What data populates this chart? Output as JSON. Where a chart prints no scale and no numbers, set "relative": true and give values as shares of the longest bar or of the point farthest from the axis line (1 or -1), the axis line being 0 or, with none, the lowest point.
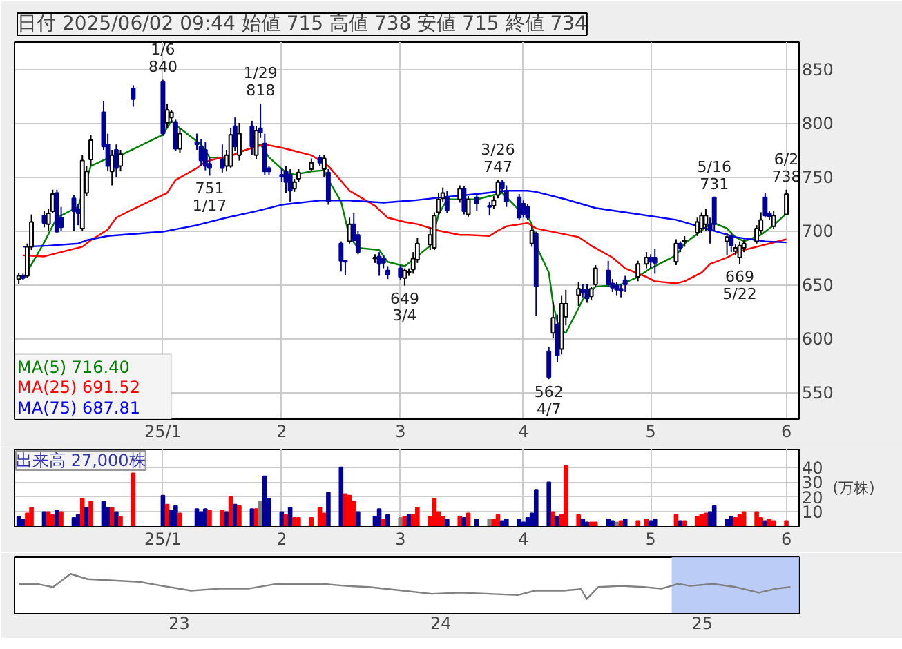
{
  "chart_data": [
    {
      "type": "candlestick",
      "title": "日付 2025/06/02 09:44 始値 715 高値 738 安値 715 終値 734",
      "x": [
        "2024-12-03",
        "2024-12-04",
        "2024-12-05",
        "2024-12-06",
        "2024-12-09",
        "2024-12-10",
        "2024-12-11",
        "2024-12-12",
        "2024-12-13",
        "2024-12-16",
        "2024-12-17",
        "2024-12-18",
        "2024-12-19",
        "2024-12-20",
        "2024-12-23",
        "2024-12-24",
        "2024-12-25",
        "2024-12-26",
        "2024-12-27",
        "2024-12-30",
        "2025-01-06",
        "2025-01-07",
        "2025-01-08",
        "2025-01-09",
        "2025-01-10",
        "2025-01-14",
        "2025-01-15",
        "2025-01-16",
        "2025-01-17",
        "2025-01-20",
        "2025-01-21",
        "2025-01-22",
        "2025-01-23",
        "2025-01-24",
        "2025-01-27",
        "2025-01-28",
        "2025-01-29",
        "2025-01-30",
        "2025-01-31",
        "2025-02-03",
        "2025-02-04",
        "2025-02-05",
        "2025-02-06",
        "2025-02-07",
        "2025-02-10",
        "2025-02-12",
        "2025-02-13",
        "2025-02-14",
        "2025-02-17",
        "2025-02-18",
        "2025-02-19",
        "2025-02-20",
        "2025-02-21",
        "2025-02-25",
        "2025-02-26",
        "2025-02-27",
        "2025-02-28",
        "2025-03-03",
        "2025-03-04",
        "2025-03-05",
        "2025-03-06",
        "2025-03-07",
        "2025-03-10",
        "2025-03-11",
        "2025-03-12",
        "2025-03-13",
        "2025-03-14",
        "2025-03-17",
        "2025-03-18",
        "2025-03-19",
        "2025-03-21",
        "2025-03-24",
        "2025-03-25",
        "2025-03-26",
        "2025-03-27",
        "2025-03-28",
        "2025-03-31",
        "2025-04-01",
        "2025-04-02",
        "2025-04-03",
        "2025-04-04",
        "2025-04-07",
        "2025-04-08",
        "2025-04-09",
        "2025-04-10",
        "2025-04-11",
        "2025-04-14",
        "2025-04-15",
        "2025-04-16",
        "2025-04-17",
        "2025-04-18",
        "2025-04-21",
        "2025-04-22",
        "2025-04-23",
        "2025-04-24",
        "2025-04-25",
        "2025-04-28",
        "2025-04-30",
        "2025-05-01",
        "2025-05-02",
        "2025-05-07",
        "2025-05-08",
        "2025-05-09",
        "2025-05-12",
        "2025-05-13",
        "2025-05-14",
        "2025-05-15",
        "2025-05-16",
        "2025-05-19",
        "2025-05-20",
        "2025-05-21",
        "2025-05-22",
        "2025-05-23",
        "2025-05-26",
        "2025-05-27",
        "2025-05-28",
        "2025-05-29",
        "2025-05-30",
        "2025-06-02"
      ],
      "ohlc": [
        [
          655,
          661,
          650,
          658
        ],
        [
          658,
          660,
          654,
          656
        ],
        [
          658,
          688,
          656,
          685
        ],
        [
          685,
          715,
          682,
          708
        ],
        [
          714,
          718,
          703,
          707
        ],
        [
          706,
          720,
          700,
          716
        ],
        [
          718,
          738,
          716,
          734
        ],
        [
          735,
          738,
          698,
          699
        ],
        [
          712,
          722,
          700,
          703
        ],
        [
          730,
          733,
          700,
          718
        ],
        [
          720,
          725,
          705,
          716
        ],
        [
          702,
          770,
          700,
          765
        ],
        [
          735,
          760,
          732,
          755
        ],
        [
          766,
          789,
          760,
          784
        ],
        [
          810,
          820,
          775,
          778
        ],
        [
          780,
          790,
          755,
          760
        ],
        [
          755,
          775,
          742,
          770
        ],
        [
          775,
          780,
          750,
          758
        ],
        [
          760,
          775,
          755,
          771
        ],
        [
          832,
          835,
          815,
          822
        ],
        [
          838,
          840,
          788,
          790
        ],
        [
          800,
          818,
          795,
          812
        ],
        [
          805,
          812,
          800,
          810
        ],
        [
          801,
          803,
          774,
          776
        ],
        [
          776,
          795,
          772,
          790
        ],
        [
          782,
          790,
          775,
          780
        ],
        [
          778,
          785,
          760,
          765
        ],
        [
          775,
          782,
          756,
          760
        ],
        [
          762,
          768,
          751,
          758
        ],
        [
          766,
          780,
          754,
          758
        ],
        [
          760,
          775,
          755,
          770
        ],
        [
          760,
          795,
          758,
          789
        ],
        [
          797,
          805,
          774,
          778
        ],
        [
          770,
          800,
          765,
          790
        ],
        [
          797,
          802,
          770,
          778
        ],
        [
          770,
          797,
          766,
          793
        ],
        [
          795,
          818,
          786,
          791
        ],
        [
          781,
          790,
          752,
          755
        ],
        [
          758,
          760,
          752,
          755
        ],
        [
          752,
          758,
          745,
          750
        ],
        [
          755,
          760,
          735,
          745
        ],
        [
          752,
          757,
          727,
          737
        ],
        [
          739,
          748,
          736,
          745
        ],
        [
          748,
          757,
          745,
          754
        ],
        [
          757,
          767,
          755,
          763
        ],
        [
          768,
          770,
          760,
          763
        ],
        [
          757,
          770,
          750,
          767
        ],
        [
          754,
          757,
          724,
          727
        ],
        [
          688,
          690,
          662,
          672
        ],
        [
          672,
          673,
          659,
          671
        ],
        [
          690,
          712,
          688,
          706
        ],
        [
          706,
          716,
          689,
          691
        ],
        [
          696,
          700,
          678,
          680
        ],
        [
          674,
          678,
          670,
          675
        ],
        [
          676,
          680,
          658,
          669
        ],
        [
          674,
          677,
          665,
          670
        ],
        [
          663,
          667,
          655,
          659
        ],
        [
          665,
          668,
          654,
          657
        ],
        [
          656,
          665,
          649,
          663
        ],
        [
          661,
          665,
          658,
          662
        ],
        [
          664,
          680,
          660,
          674
        ],
        [
          673,
          693,
          670,
          688
        ],
        [
          687,
          703,
          682,
          696
        ],
        [
          684,
          717,
          682,
          714
        ],
        [
          717,
          735,
          714,
          729
        ],
        [
          730,
          740,
          727,
          735
        ],
        [
          731,
          737,
          716,
          719
        ],
        [
          729,
          742,
          726,
          739
        ],
        [
          739,
          741,
          715,
          718
        ],
        [
          715,
          732,
          713,
          729
        ],
        [
          731,
          734,
          718,
          725
        ],
        [
          723,
          727,
          714,
          722
        ],
        [
          723,
          732,
          720,
          728
        ],
        [
          733,
          747,
          730,
          745
        ],
        [
          745,
          747,
          735,
          739
        ],
        [
          737,
          742,
          722,
          727
        ],
        [
          731,
          734,
          710,
          712
        ],
        [
          725,
          728,
          712,
          715
        ],
        [
          722,
          725,
          710,
          712
        ],
        [
          688,
          704,
          685,
          700
        ],
        [
          697,
          699,
          621,
          648
        ],
        [
          588,
          592,
          562,
          564
        ],
        [
          605,
          634,
          600,
          619
        ],
        [
          613,
          622,
          578,
          584
        ],
        [
          590,
          640,
          585,
          632
        ],
        [
          620,
          645,
          612,
          632
        ],
        [
          640,
          652,
          630,
          646
        ],
        [
          645,
          650,
          638,
          643
        ],
        [
          645,
          650,
          633,
          637
        ],
        [
          639,
          648,
          636,
          646
        ],
        [
          650,
          668,
          648,
          665
        ],
        [
          663,
          672,
          648,
          650
        ],
        [
          651,
          655,
          643,
          647
        ],
        [
          649,
          652,
          640,
          645
        ],
        [
          646,
          650,
          638,
          644
        ],
        [
          654,
          658,
          643,
          650
        ],
        [
          657,
          672,
          653,
          669
        ],
        [
          669,
          680,
          665,
          675
        ],
        [
          675,
          678,
          665,
          671
        ],
        [
          675,
          683,
          660,
          670
        ],
        [
          671,
          692,
          668,
          688
        ],
        [
          688,
          690,
          680,
          684
        ],
        [
          690,
          695,
          685,
          691
        ],
        [
          698,
          712,
          695,
          708
        ],
        [
          702,
          717,
          698,
          714
        ],
        [
          706,
          720,
          700,
          714
        ],
        [
          706,
          712,
          688,
          700
        ],
        [
          731,
          731,
          700,
          706
        ],
        [
          690,
          698,
          677,
          694
        ],
        [
          695,
          698,
          680,
          686
        ],
        [
          681,
          687,
          677,
          684
        ],
        [
          675,
          690,
          669,
          686
        ],
        [
          684,
          692,
          680,
          688
        ],
        [
          690,
          705,
          688,
          702
        ],
        [
          700,
          717,
          697,
          710
        ],
        [
          731,
          735,
          712,
          714
        ],
        [
          716,
          718,
          710,
          713
        ],
        [
          704,
          718,
          702,
          714
        ],
        [
          715,
          738,
          715,
          734
        ]
      ],
      "colors": [
        "#ffffff",
        "#000099",
        "#ffffff",
        "#ffffff",
        "#000099",
        "#ffffff",
        "#ffffff",
        "#000099",
        "#000099",
        "#000099",
        "#000099",
        "#ffffff",
        "#ffffff",
        "#ffffff",
        "#000099",
        "#000099",
        "#ffffff",
        "#000099",
        "#ffffff",
        "#000099",
        "#000099",
        "#ffffff",
        "#ffffff",
        "#000099",
        "#ffffff",
        "#000099",
        "#000099",
        "#000099",
        "#000099",
        "#000099",
        "#ffffff",
        "#ffffff",
        "#000099",
        "#ffffff",
        "#000099",
        "#ffffff",
        "#000099",
        "#000099",
        "#000099",
        "#000099",
        "#000099",
        "#000099",
        "#ffffff",
        "#ffffff",
        "#ffffff",
        "#000099",
        "#ffffff",
        "#000099",
        "#000099",
        "#000099",
        "#ffffff",
        "#000099",
        "#000099",
        "#ffffff",
        "#000099",
        "#000099",
        "#000099",
        "#000099",
        "#ffffff",
        "#ffffff",
        "#ffffff",
        "#ffffff",
        "#ffffff",
        "#ffffff",
        "#ffffff",
        "#ffffff",
        "#000099",
        "#ffffff",
        "#000099",
        "#ffffff",
        "#000099",
        "#000099",
        "#ffffff",
        "#ffffff",
        "#000099",
        "#000099",
        "#000099",
        "#000099",
        "#000099",
        "#ffffff",
        "#000099",
        "#000099",
        "#ffffff",
        "#000099",
        "#ffffff",
        "#ffffff",
        "#ffffff",
        "#000099",
        "#000099",
        "#ffffff",
        "#ffffff",
        "#000099",
        "#000099",
        "#000099",
        "#000099",
        "#000099",
        "#ffffff",
        "#ffffff",
        "#000099",
        "#000099",
        "#ffffff",
        "#000099",
        "#ffffff",
        "#ffffff",
        "#ffffff",
        "#ffffff",
        "#000099",
        "#000099",
        "#ffffff",
        "#000099",
        "#ffffff",
        "#ffffff",
        "#ffffff",
        "#ffffff",
        "#ffffff",
        "#000099",
        "#000099",
        "#ffffff",
        "#ffffff"
      ],
      "series": [
        {
          "type": "line",
          "name": "MA(5) 716.40",
          "color": "#008000",
          "x": [
            "2024-12-04",
            "2024-12-09",
            "2024-12-12",
            "2024-12-17",
            "2024-12-20",
            "2024-12-25",
            "2024-12-27",
            "2025-01-06",
            "2025-01-08",
            "2025-01-10",
            "2025-01-15",
            "2025-01-17",
            "2025-01-21",
            "2025-01-23",
            "2025-01-27",
            "2025-01-29",
            "2025-01-31",
            "2025-02-04",
            "2025-02-06",
            "2025-02-10",
            "2025-02-13",
            "2025-02-14",
            "2025-02-17",
            "2025-02-19",
            "2025-02-21",
            "2025-02-26",
            "2025-02-28",
            "2025-03-04",
            "2025-03-06",
            "2025-03-10",
            "2025-03-12",
            "2025-03-14",
            "2025-03-18",
            "2025-03-21",
            "2025-03-25",
            "2025-03-27",
            "2025-03-31",
            "2025-04-01",
            "2025-04-03",
            "2025-04-04",
            "2025-04-07",
            "2025-04-08",
            "2025-04-09",
            "2025-04-10",
            "2025-04-11",
            "2025-04-14",
            "2025-04-15",
            "2025-04-16",
            "2025-04-17",
            "2025-04-18",
            "2025-04-22",
            "2025-04-24",
            "2025-04-28",
            "2025-05-01",
            "2025-05-07",
            "2025-05-09",
            "2025-05-13",
            "2025-05-15",
            "2025-05-16",
            "2025-05-19",
            "2025-05-21",
            "2025-05-23",
            "2025-05-27",
            "2025-05-29",
            "2025-05-30",
            "2025-06-02"
          ],
          "values": [
            655,
            689,
            712,
            722,
            760,
            769,
            770,
            789,
            802,
            795,
            780,
            768,
            767,
            771,
            777,
            780,
            768,
            754,
            752,
            755,
            756,
            747,
            727,
            694,
            684,
            682,
            671,
            667,
            673,
            686,
            715,
            729,
            729,
            729,
            733,
            735,
            719,
            720,
            706,
            686,
            661,
            632,
            615,
            607,
            605,
            628,
            636,
            640,
            644,
            648,
            649,
            650,
            657,
            665,
            677,
            688,
            700,
            706,
            707,
            702,
            694,
            690,
            696,
            702,
            705,
            716
          ]
        },
        {
          "type": "line",
          "name": "MA(25) 691.52",
          "color": "#ff0000",
          "x": [
            "2024-12-04",
            "2024-12-09",
            "2024-12-13",
            "2024-12-18",
            "2024-12-20",
            "2024-12-24",
            "2024-12-26",
            "2024-12-30",
            "2025-01-07",
            "2025-01-09",
            "2025-01-14",
            "2025-01-16",
            "2025-01-20",
            "2025-01-22",
            "2025-01-24",
            "2025-01-28",
            "2025-01-30",
            "2025-02-03",
            "2025-02-05",
            "2025-02-10",
            "2025-02-14",
            "2025-02-19",
            "2025-02-25",
            "2025-02-28",
            "2025-03-04",
            "2025-03-07",
            "2025-03-12",
            "2025-03-17",
            "2025-03-19",
            "2025-03-24",
            "2025-03-26",
            "2025-03-28",
            "2025-04-02",
            "2025-04-04",
            "2025-04-09",
            "2025-04-14",
            "2025-04-17",
            "2025-04-22",
            "2025-04-25",
            "2025-04-30",
            "2025-05-02",
            "2025-05-07",
            "2025-05-09",
            "2025-05-13",
            "2025-05-15",
            "2025-05-19",
            "2025-05-21",
            "2025-05-23",
            "2025-05-27",
            "2025-05-29",
            "2025-06-02"
          ],
          "values": [
            677,
            676,
            680,
            685,
            691,
            701,
            712,
            720,
            735,
            747,
            758,
            764,
            768,
            769,
            773,
            778,
            780,
            777,
            775,
            770,
            760,
            737,
            723,
            712,
            708,
            706,
            700,
            696,
            696,
            695,
            700,
            704,
            707,
            702,
            698,
            694,
            686,
            675,
            665,
            657,
            653,
            651,
            653,
            661,
            669,
            675,
            679,
            682,
            686,
            688,
            692
          ]
        },
        {
          "type": "line",
          "name": "MA(75) 687.81",
          "color": "#0000ff",
          "x": [
            "2024-12-04",
            "2024-12-10",
            "2024-12-17",
            "2024-12-19",
            "2024-12-24",
            "2025-01-06",
            "2025-01-14",
            "2025-01-21",
            "2025-01-28",
            "2025-02-03",
            "2025-02-12",
            "2025-02-19",
            "2025-02-27",
            "2025-03-06",
            "2025-03-13",
            "2025-03-21",
            "2025-03-28",
            "2025-04-02",
            "2025-04-04",
            "2025-04-11",
            "2025-04-18",
            "2025-04-25",
            "2025-05-07",
            "2025-05-14",
            "2025-05-21",
            "2025-05-28",
            "2025-06-02"
          ],
          "values": [
            685,
            686,
            688,
            691,
            695,
            699,
            705,
            712,
            718,
            724,
            728,
            728,
            726,
            728,
            731,
            734,
            737,
            737,
            736,
            729,
            721,
            717,
            710,
            702,
            694,
            690,
            689
          ]
        }
      ],
      "annotations": [
        {
          "text": "1/6\n840",
          "x": "2025-01-06",
          "y": 840
        },
        {
          "text": "751\n1/17",
          "x": "2025-01-17",
          "y": 751
        },
        {
          "text": "1/29\n818",
          "x": "2025-01-29",
          "y": 818
        },
        {
          "text": "649\n3/4",
          "x": "2025-03-04",
          "y": 649
        },
        {
          "text": "3/26\n747",
          "x": "2025-03-26",
          "y": 747
        },
        {
          "text": "562\n4/7",
          "x": "2025-04-07",
          "y": 562
        },
        {
          "text": "5/16\n731",
          "x": "2025-05-16",
          "y": 731
        },
        {
          "text": "669\n5/22",
          "x": "2025-05-22",
          "y": 669
        },
        {
          "text": "6/2\n738",
          "x": "2025-06-02",
          "y": 738
        }
      ],
      "xlim": [
        "2024-12-02",
        "2025-06-05"
      ],
      "xticks": [
        {
          "value": "2025-01-06",
          "label": "25/1"
        },
        {
          "value": "2025-02-03",
          "label": "2"
        },
        {
          "value": "2025-03-03",
          "label": "3"
        },
        {
          "value": "2025-04-01",
          "label": "4"
        },
        {
          "value": "2025-05-01",
          "label": "5"
        },
        {
          "value": "2025-06-02",
          "label": "6"
        }
      ],
      "ylim": [
        525,
        875
      ],
      "yticks": [
        550,
        600,
        650,
        700,
        750,
        800,
        850
      ],
      "grid": true,
      "legend": "bottom left"
    },
    {
      "type": "bar",
      "title": "出来高 27,000株",
      "ylabel": "(万株)",
      "x": [
        "2024-12-03",
        "2024-12-04",
        "2024-12-05",
        "2024-12-06",
        "2024-12-09",
        "2024-12-10",
        "2024-12-11",
        "2024-12-12",
        "2024-12-13",
        "2024-12-16",
        "2024-12-17",
        "2024-12-18",
        "2024-12-19",
        "2024-12-20",
        "2024-12-23",
        "2024-12-24",
        "2024-12-25",
        "2024-12-26",
        "2024-12-27",
        "2024-12-30",
        "2025-01-06",
        "2025-01-07",
        "2025-01-08",
        "2025-01-09",
        "2025-01-10",
        "2025-01-14",
        "2025-01-15",
        "2025-01-16",
        "2025-01-17",
        "2025-01-20",
        "2025-01-21",
        "2025-01-22",
        "2025-01-23",
        "2025-01-24",
        "2025-01-27",
        "2025-01-28",
        "2025-01-29",
        "2025-01-30",
        "2025-01-31",
        "2025-02-03",
        "2025-02-04",
        "2025-02-05",
        "2025-02-06",
        "2025-02-07",
        "2025-02-10",
        "2025-02-12",
        "2025-02-13",
        "2025-02-14",
        "2025-02-17",
        "2025-02-18",
        "2025-02-19",
        "2025-02-20",
        "2025-02-21",
        "2025-02-25",
        "2025-02-26",
        "2025-02-27",
        "2025-02-28",
        "2025-03-03",
        "2025-03-04",
        "2025-03-05",
        "2025-03-06",
        "2025-03-07",
        "2025-03-10",
        "2025-03-11",
        "2025-03-12",
        "2025-03-13",
        "2025-03-14",
        "2025-03-17",
        "2025-03-18",
        "2025-03-19",
        "2025-03-21",
        "2025-03-24",
        "2025-03-25",
        "2025-03-26",
        "2025-03-27",
        "2025-03-28",
        "2025-03-31",
        "2025-04-01",
        "2025-04-02",
        "2025-04-03",
        "2025-04-04",
        "2025-04-07",
        "2025-04-08",
        "2025-04-09",
        "2025-04-10",
        "2025-04-11",
        "2025-04-14",
        "2025-04-15",
        "2025-04-16",
        "2025-04-17",
        "2025-04-18",
        "2025-04-21",
        "2025-04-22",
        "2025-04-23",
        "2025-04-24",
        "2025-04-25",
        "2025-04-28",
        "2025-04-30",
        "2025-05-01",
        "2025-05-02",
        "2025-05-07",
        "2025-05-08",
        "2025-05-09",
        "2025-05-12",
        "2025-05-13",
        "2025-05-14",
        "2025-05-15",
        "2025-05-16",
        "2025-05-19",
        "2025-05-20",
        "2025-05-21",
        "2025-05-22",
        "2025-05-23",
        "2025-05-26",
        "2025-05-27",
        "2025-05-28",
        "2025-05-29",
        "2025-05-30",
        "2025-06-02"
      ],
      "values": [
        7,
        5,
        9,
        13,
        10,
        10,
        8,
        11,
        10,
        6,
        8,
        19,
        13,
        17,
        17,
        13,
        13,
        10,
        7,
        36,
        21,
        15,
        11,
        14,
        9,
        12,
        10,
        12,
        11,
        11,
        10,
        20,
        15,
        14,
        12,
        12,
        17,
        34,
        19,
        10,
        8,
        13,
        6,
        6,
        6,
        13,
        9,
        23,
        40,
        22,
        21,
        17,
        10,
        7,
        12,
        5,
        8,
        6,
        7,
        8,
        8,
        13,
        7,
        19,
        10,
        7,
        5,
        7,
        6,
        9,
        5,
        5,
        5,
        8,
        4,
        5,
        5,
        3,
        6,
        9,
        25,
        30,
        10,
        7,
        8,
        41,
        8,
        5,
        3,
        3,
        3,
        5,
        4,
        3,
        4,
        5,
        4,
        5,
        4,
        5,
        8,
        4,
        4,
        7,
        8,
        9,
        10,
        14,
        5,
        7,
        6,
        8,
        10,
        10,
        6,
        4,
        5,
        4,
        4
      ],
      "colors": [
        "#000099",
        "#000099",
        "#ff0000",
        "#ff0000",
        "#000099",
        "#ff0000",
        "#ff0000",
        "#000099",
        "#ff0000",
        "#000099",
        "#000099",
        "#ff0000",
        "#000099",
        "#ff0000",
        "#000099",
        "#000099",
        "#ff0000",
        "#000099",
        "#ff0000",
        "#ff0000",
        "#000099",
        "#ff0000",
        "#000099",
        "#000099",
        "#ff0000",
        "#000099",
        "#000099",
        "#000099",
        "#ff0000",
        "#ff0000",
        "#000099",
        "#ff0000",
        "#000099",
        "#ff0000",
        "#000099",
        "#ff0000",
        "#808080",
        "#000099",
        "#000099",
        "#000099",
        "#ff0000",
        "#000099",
        "#ff0000",
        "#ff0000",
        "#ff0000",
        "#ff0000",
        "#ff0000",
        "#000099",
        "#000099",
        "#ff0000",
        "#ff0000",
        "#ff0000",
        "#000099",
        "#000099",
        "#000099",
        "#ff0000",
        "#000099",
        "#808080",
        "#ff0000",
        "#000099",
        "#ff0000",
        "#ff0000",
        "#ff0000",
        "#ff0000",
        "#ff0000",
        "#ff0000",
        "#000099",
        "#ff0000",
        "#000099",
        "#ff0000",
        "#000099",
        "#808080",
        "#ff0000",
        "#ff0000",
        "#000099",
        "#000099",
        "#000099",
        "#000099",
        "#000099",
        "#000099",
        "#000099",
        "#000099",
        "#ff0000",
        "#000099",
        "#ff0000",
        "#ff0000",
        "#ff0000",
        "#000099",
        "#000099",
        "#ff0000",
        "#ff0000",
        "#000099",
        "#000099",
        "#808080",
        "#ff0000",
        "#000099",
        "#ff0000",
        "#ff0000",
        "#000099",
        "#000099",
        "#ff0000",
        "#000099",
        "#ff0000",
        "#ff0000",
        "#ff0000",
        "#ff0000",
        "#000099",
        "#000099",
        "#000099",
        "#000099",
        "#ff0000",
        "#ff0000",
        "#ff0000",
        "#ff0000",
        "#ff0000",
        "#000099",
        "#ff0000",
        "#ff0000",
        "#ff0000"
      ],
      "xlim": [
        "2024-12-02",
        "2025-06-05"
      ],
      "xticks": [
        {
          "value": "2025-01-06",
          "label": "25/1"
        },
        {
          "value": "2025-02-03",
          "label": "2"
        },
        {
          "value": "2025-03-03",
          "label": "3"
        },
        {
          "value": "2025-04-01",
          "label": "4"
        },
        {
          "value": "2025-05-01",
          "label": "5"
        },
        {
          "value": "2025-06-02",
          "label": "6"
        }
      ],
      "ylim": [
        0,
        52
      ],
      "yticks": [
        10,
        20,
        30,
        40
      ],
      "grid": true
    },
    {
      "type": "line",
      "relative": true,
      "tick_labels": "x",
      "series": [
        {
          "color": "#808080",
          "x": [
            2022.387,
            2022.453,
            2022.518,
            2022.584,
            2022.65,
            2022.76,
            2022.847,
            2022.935,
            2023.045,
            2023.154,
            2023.264,
            2023.374,
            2023.462,
            2023.549,
            2023.637,
            2023.725,
            2023.856,
            2023.966,
            2024.075,
            2024.185,
            2024.295,
            2024.361,
            2024.47,
            2024.536,
            2024.558,
            2024.602,
            2024.689,
            2024.777,
            2024.843,
            2024.909,
            2024.953,
            2025.041,
            2025.128,
            2025.216,
            2025.282,
            2025.337
          ],
          "values": [
            0.75,
            0.75,
            0.67,
            1,
            0.87,
            0.83,
            0.8,
            0.7,
            0.58,
            0.63,
            0.63,
            0.75,
            0.75,
            0.75,
            0.7,
            0.67,
            0.58,
            0.5,
            0.53,
            0.5,
            0.47,
            0.58,
            0.58,
            0.62,
            0.37,
            0.67,
            0.7,
            0.67,
            0.63,
            0.75,
            0.7,
            0.75,
            0.67,
            0.53,
            0.63,
            0.67
          ]
        }
      ],
      "bands": [
        {
          "axis": "x",
          "from": 2024.883,
          "to": 2025.37,
          "color": "#b4c6f5"
        }
      ],
      "xlim": [
        2022.37,
        2025.37
      ],
      "xticks": [
        {
          "value": 2023,
          "label": "23"
        },
        {
          "value": 2024,
          "label": "24"
        },
        {
          "value": 2025,
          "label": "25"
        }
      ]
    }
  ]
}
